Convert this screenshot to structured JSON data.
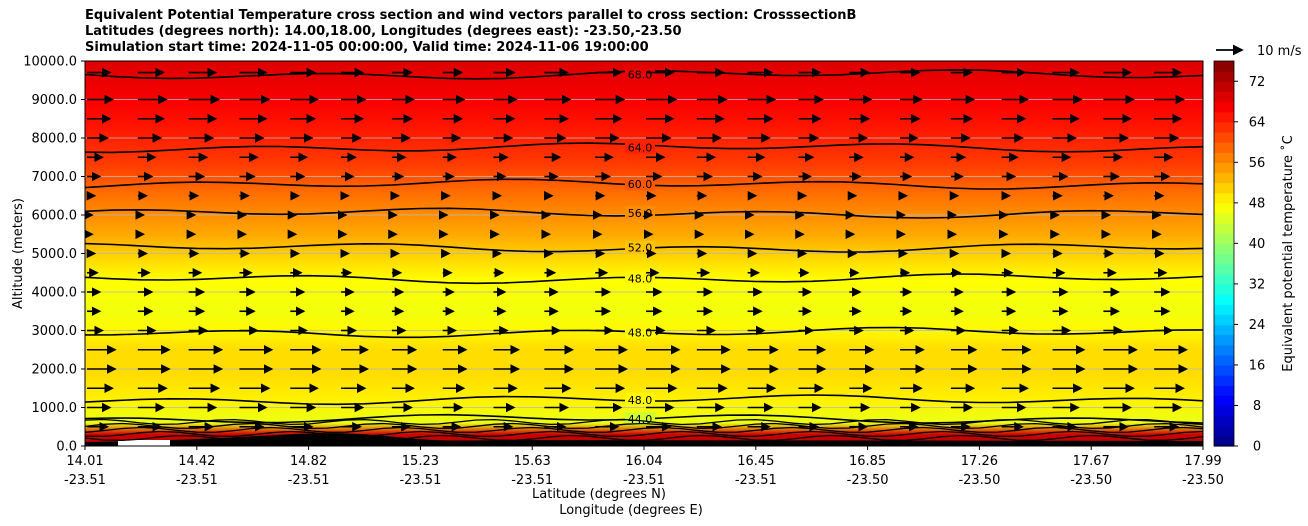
{
  "chart_data": {
    "type": "heatmap",
    "title_lines": [
      "Equivalent Potential Temperature cross section and wind vectors parallel to cross section: CrosssectionB",
      "Latitudes (degrees north): 14.00,18.00, Longitudes (degrees east): -23.50,-23.50",
      "Simulation start time: 2024-11-05 00:00:00, Valid time: 2024-11-06 19:00:00"
    ],
    "ylabel": "Altitude (meters)",
    "xlabel_lines": [
      "Latitude (degrees N)",
      "Longitude (degrees E)"
    ],
    "ylim": [
      0,
      10000
    ],
    "y_ticks": [
      "0.0",
      "1000.0",
      "2000.0",
      "3000.0",
      "4000.0",
      "5000.0",
      "6000.0",
      "7000.0",
      "8000.0",
      "9000.0",
      "10000.0"
    ],
    "x_ticks": [
      {
        "lat": "14.01",
        "lon": "-23.51"
      },
      {
        "lat": "14.42",
        "lon": "-23.51"
      },
      {
        "lat": "14.82",
        "lon": "-23.51"
      },
      {
        "lat": "15.23",
        "lon": "-23.51"
      },
      {
        "lat": "15.63",
        "lon": "-23.51"
      },
      {
        "lat": "16.04",
        "lon": "-23.51"
      },
      {
        "lat": "16.45",
        "lon": "-23.51"
      },
      {
        "lat": "16.85",
        "lon": "-23.50"
      },
      {
        "lat": "17.26",
        "lon": "-23.50"
      },
      {
        "lat": "17.67",
        "lon": "-23.50"
      },
      {
        "lat": "17.99",
        "lon": "-23.50"
      }
    ],
    "theta_e_profile": [
      {
        "alt": 0,
        "value": 72
      },
      {
        "alt": 300,
        "value": 70
      },
      {
        "alt": 600,
        "value": 46
      },
      {
        "alt": 1200,
        "value": 48.5
      },
      {
        "alt": 1800,
        "value": 50
      },
      {
        "alt": 2500,
        "value": 50
      },
      {
        "alt": 3000,
        "value": 48
      },
      {
        "alt": 3500,
        "value": 46.5
      },
      {
        "alt": 4300,
        "value": 47.5
      },
      {
        "alt": 4800,
        "value": 50
      },
      {
        "alt": 5500,
        "value": 54
      },
      {
        "alt": 6500,
        "value": 58
      },
      {
        "alt": 7300,
        "value": 62
      },
      {
        "alt": 8300,
        "value": 65
      },
      {
        "alt": 9000,
        "value": 67
      },
      {
        "alt": 10000,
        "value": 69
      }
    ],
    "contours": [
      {
        "label": "68.0",
        "level": 68,
        "alt": 9650
      },
      {
        "label": "64.0",
        "level": 64,
        "alt": 7750
      },
      {
        "label": "60.0",
        "level": 60,
        "alt": 6800
      },
      {
        "label": "56.0",
        "level": 56,
        "alt": 6050
      },
      {
        "label": "52.0",
        "level": 52,
        "alt": 5150
      },
      {
        "label": "48.0",
        "level": 48,
        "alt": 4350
      },
      {
        "label": "48.0",
        "level": 48,
        "alt": 2950
      },
      {
        "label": "48.0",
        "level": 48,
        "alt": 1200
      },
      {
        "label": "44.0",
        "level": 44,
        "alt": 700
      }
    ],
    "wind_vector_rows": [
      {
        "alt": 9700,
        "speed": 9
      },
      {
        "alt": 9000,
        "speed": 10
      },
      {
        "alt": 8500,
        "speed": 9
      },
      {
        "alt": 8000,
        "speed": 8
      },
      {
        "alt": 7500,
        "speed": 6
      },
      {
        "alt": 7000,
        "speed": 5
      },
      {
        "alt": 6500,
        "speed": 3
      },
      {
        "alt": 6000,
        "speed": 2
      },
      {
        "alt": 5500,
        "speed": 2
      },
      {
        "alt": 5000,
        "speed": 3
      },
      {
        "alt": 4500,
        "speed": 4
      },
      {
        "alt": 4000,
        "speed": 5
      },
      {
        "alt": 3500,
        "speed": 5
      },
      {
        "alt": 3000,
        "speed": 6
      },
      {
        "alt": 2500,
        "speed": 11
      },
      {
        "alt": 2000,
        "speed": 11
      },
      {
        "alt": 1500,
        "speed": 10
      },
      {
        "alt": 1000,
        "speed": 9
      },
      {
        "alt": 500,
        "speed": 8
      }
    ],
    "quiver_key_label": "10 m/s",
    "colorbar": {
      "label": "Equivalent potential temperature ˚C",
      "range": [
        0,
        76
      ],
      "ticks": [
        "0",
        "8",
        "16",
        "24",
        "32",
        "40",
        "48",
        "56",
        "64",
        "72"
      ]
    }
  }
}
